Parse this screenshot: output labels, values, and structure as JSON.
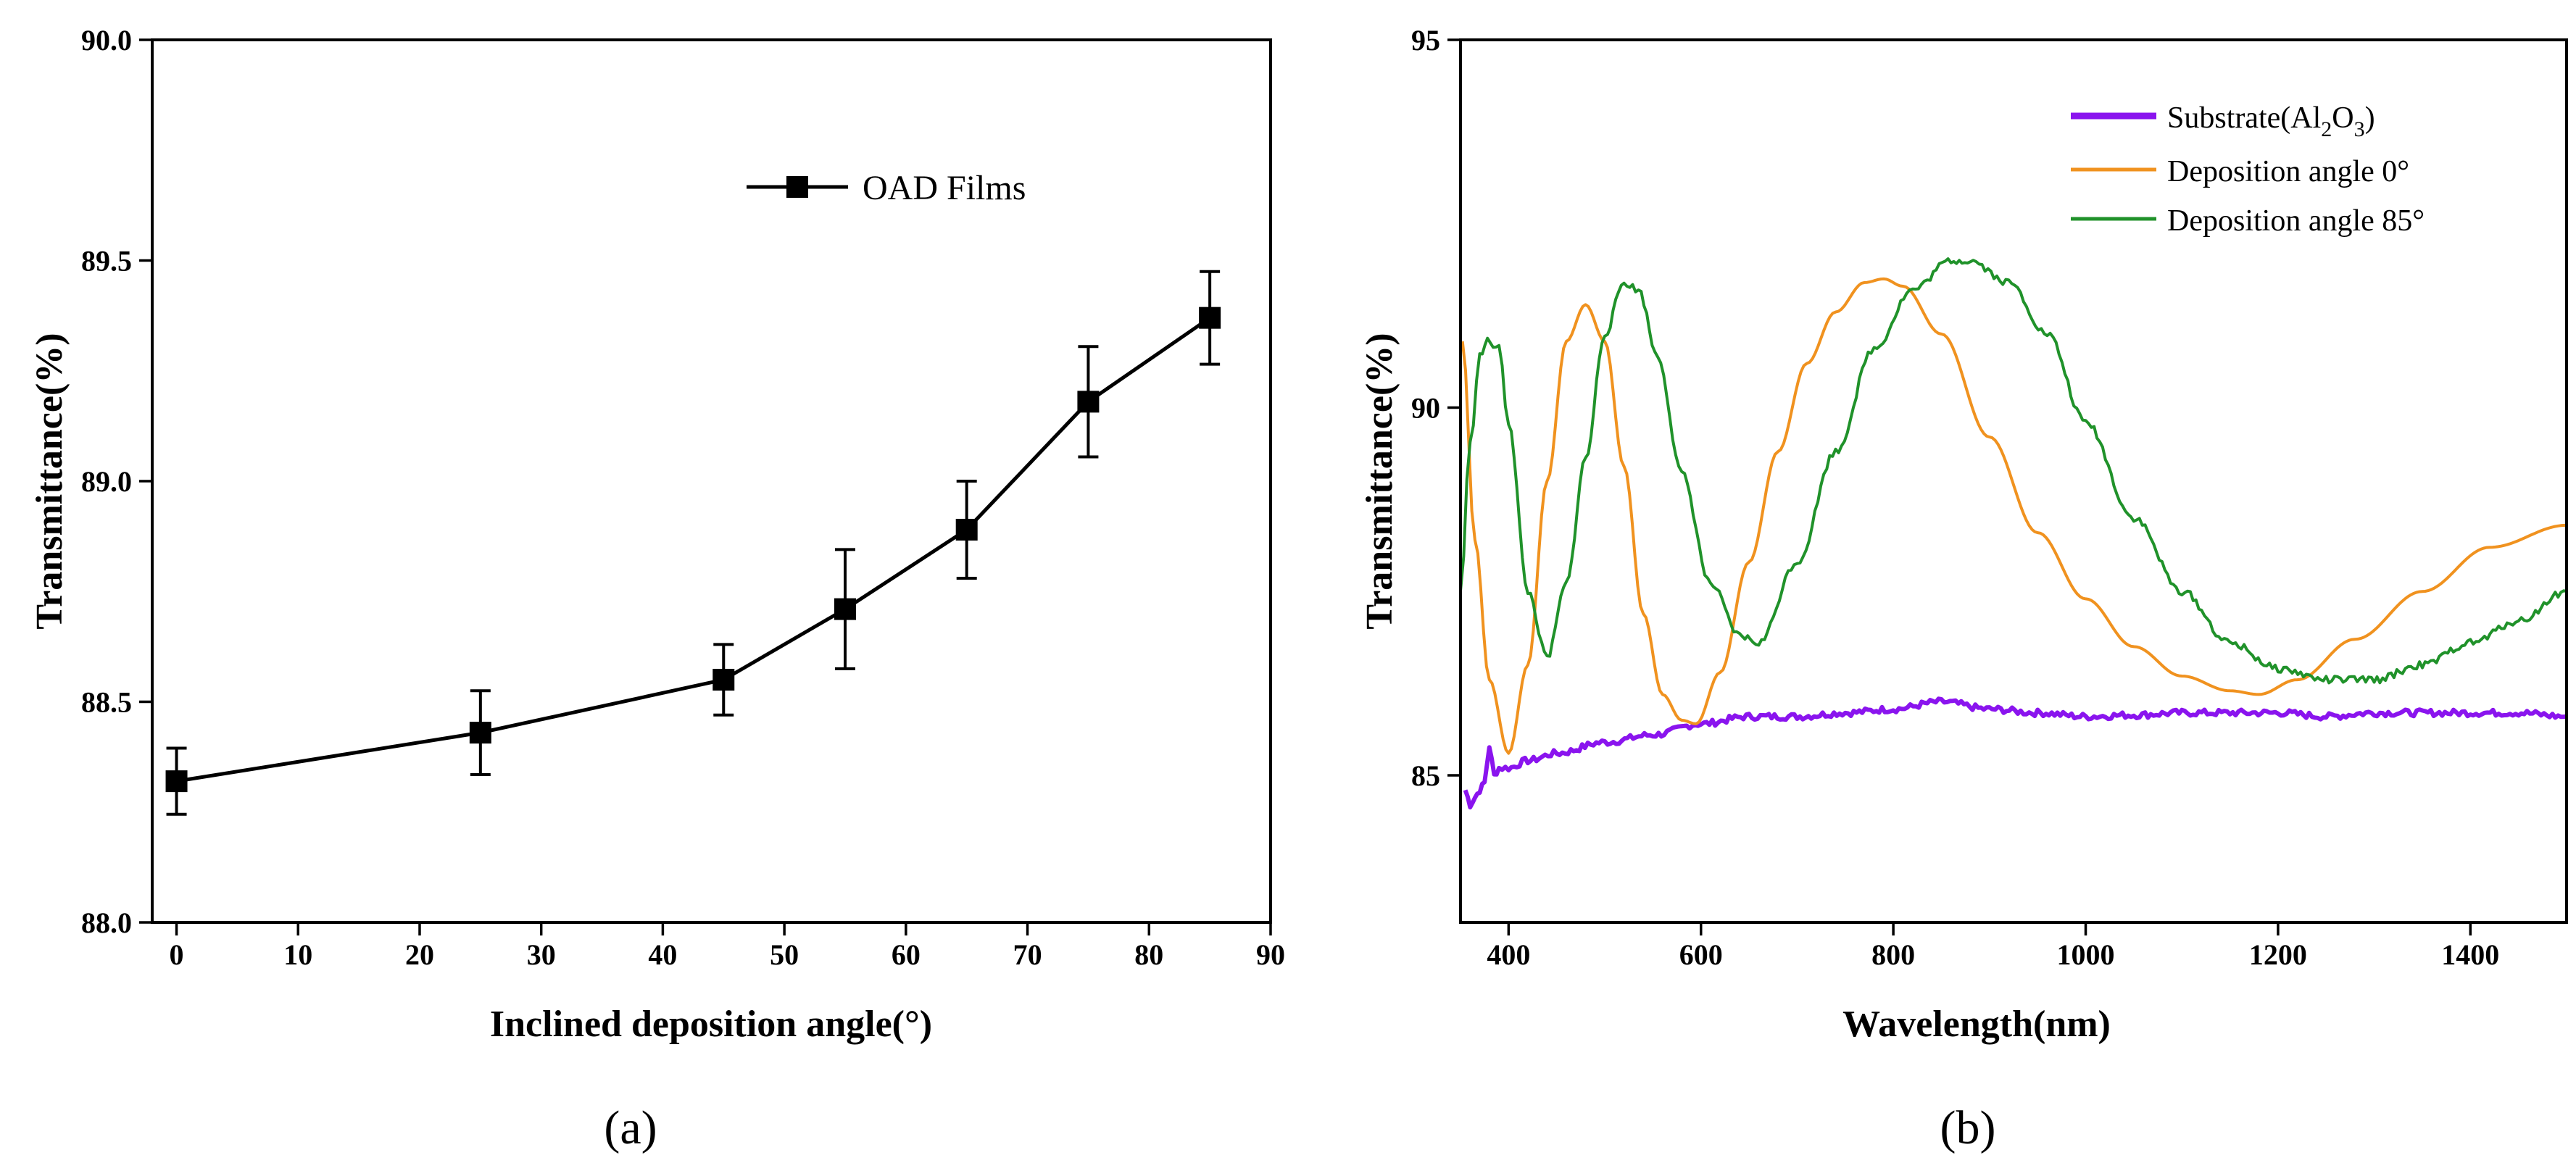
{
  "chart_data": [
    {
      "panel": "a",
      "panel_label": "(a)",
      "type": "line",
      "title": "",
      "xlabel": "Inclined deposition angle(°)",
      "ylabel": "Transmittance(%)",
      "xlim": [
        -2,
        90
      ],
      "ylim": [
        88.0,
        90.0
      ],
      "xticks": [
        0,
        10,
        20,
        30,
        40,
        50,
        60,
        70,
        80,
        90
      ],
      "yticks": [
        88.0,
        88.5,
        89.0,
        89.5,
        90.0
      ],
      "xtick_labels": [
        "0",
        "10",
        "20",
        "30",
        "40",
        "50",
        "60",
        "70",
        "80",
        "90"
      ],
      "ytick_labels": [
        "88.0",
        "88.5",
        "89.0",
        "89.5",
        "90.0"
      ],
      "legend": {
        "position": "top-right",
        "entries": [
          "OAD Films"
        ]
      },
      "series": [
        {
          "name": "OAD Films",
          "marker": "square",
          "color": "#000000",
          "x": [
            0,
            25,
            45,
            55,
            65,
            75,
            85
          ],
          "y": [
            88.32,
            88.43,
            88.55,
            88.71,
            88.89,
            89.18,
            89.37
          ],
          "error": [
            0.075,
            0.095,
            0.08,
            0.135,
            0.11,
            0.125,
            0.105
          ]
        }
      ]
    },
    {
      "panel": "b",
      "panel_label": "(b)",
      "type": "line",
      "title": "",
      "xlabel": "Wavelength(nm)",
      "ylabel": "Transmittance(%)",
      "xlim": [
        350,
        1500
      ],
      "ylim": [
        83,
        95
      ],
      "xticks": [
        400,
        600,
        800,
        1000,
        1200,
        1400
      ],
      "yticks": [
        85,
        90,
        95
      ],
      "xtick_labels": [
        "400",
        "600",
        "800",
        "1000",
        "1200",
        "1400"
      ],
      "ytick_labels": [
        "85",
        "90",
        "95"
      ],
      "legend": {
        "position": "top-right"
      },
      "series": [
        {
          "name": "Substrate(Al2O3)",
          "legend_main": "Substrate(Al",
          "legend_sub1": "2",
          "legend_mid": "O",
          "legend_sub2": "3",
          "legend_end": ")",
          "color": "#8a14ee",
          "x": [
            355,
            360,
            365,
            370,
            375,
            380,
            385,
            390,
            400,
            420,
            450,
            500,
            550,
            600,
            650,
            700,
            750,
            800,
            850,
            900,
            950,
            1000,
            1050,
            1100,
            1150,
            1200,
            1250,
            1300,
            1350,
            1400,
            1450,
            1500
          ],
          "y": [
            84.8,
            84.6,
            84.7,
            84.8,
            84.9,
            85.4,
            85.0,
            85.1,
            85.1,
            85.2,
            85.3,
            85.45,
            85.55,
            85.7,
            85.8,
            85.8,
            85.85,
            85.9,
            86.0,
            85.9,
            85.85,
            85.8,
            85.82,
            85.85,
            85.85,
            85.85,
            85.8,
            85.85,
            85.85,
            85.85,
            85.85,
            85.8
          ]
        },
        {
          "name": "Deposition angle 0°",
          "color": "#f0921f",
          "x": [
            352,
            365,
            380,
            400,
            420,
            440,
            460,
            480,
            500,
            520,
            540,
            560,
            580,
            595,
            620,
            650,
            680,
            710,
            740,
            770,
            790,
            810,
            850,
            900,
            950,
            1000,
            1050,
            1100,
            1150,
            1180,
            1220,
            1280,
            1350,
            1420,
            1500
          ],
          "y": [
            90.9,
            88.2,
            86.3,
            85.3,
            86.5,
            89.0,
            90.9,
            91.4,
            90.9,
            89.2,
            87.2,
            86.1,
            85.75,
            85.7,
            86.4,
            87.9,
            89.4,
            90.6,
            91.3,
            91.7,
            91.75,
            91.65,
            91.0,
            89.6,
            88.3,
            87.4,
            86.75,
            86.35,
            86.15,
            86.1,
            86.3,
            86.85,
            87.5,
            88.1,
            88.4
          ]
        },
        {
          "name": "Deposition angle 85°",
          "color": "#20922a",
          "x": [
            350,
            360,
            370,
            378,
            390,
            400,
            420,
            440,
            460,
            480,
            500,
            520,
            535,
            555,
            580,
            610,
            640,
            660,
            700,
            740,
            780,
            820,
            860,
            880,
            920,
            960,
            1000,
            1050,
            1100,
            1150,
            1200,
            1250,
            1300,
            1350,
            1400,
            1450,
            1500
          ],
          "y": [
            87.5,
            89.5,
            90.7,
            90.9,
            90.8,
            89.8,
            87.5,
            86.6,
            87.6,
            89.3,
            91.0,
            91.7,
            91.6,
            90.7,
            89.1,
            87.6,
            86.9,
            86.8,
            87.9,
            89.4,
            90.8,
            91.6,
            92.0,
            92.0,
            91.7,
            91.0,
            89.8,
            88.5,
            87.5,
            86.8,
            86.45,
            86.3,
            86.3,
            86.5,
            86.8,
            87.1,
            87.5
          ]
        }
      ]
    }
  ]
}
